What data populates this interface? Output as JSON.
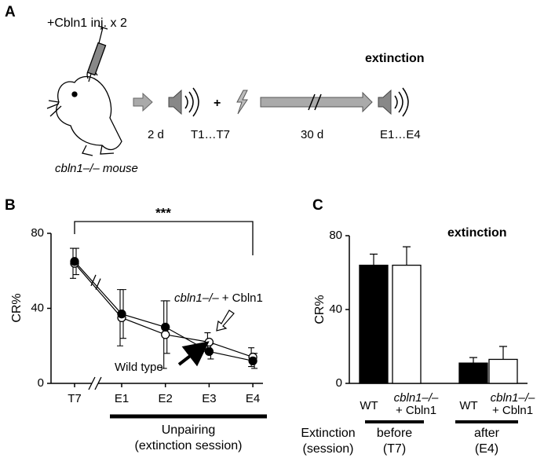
{
  "panel_a": {
    "label": "A",
    "injection": "+Cbln1 inj. x 2",
    "mouse": "cbln1–/– mouse",
    "plus": "+",
    "interval1": "2 d",
    "training": "T1…T7",
    "interval2": "30 d",
    "test": "E1…E4",
    "title": "extinction"
  },
  "chart_data": [
    {
      "panel": "B",
      "type": "line",
      "ylabel": "CR%",
      "ylim": [
        0,
        80
      ],
      "yticks": [
        0,
        40,
        80
      ],
      "significance": "***",
      "categories": [
        "T7",
        "E1",
        "E2",
        "E3",
        "E4"
      ],
      "series": [
        {
          "name": "Wild type",
          "color": "#000000",
          "values": [
            65,
            37,
            30,
            17,
            12
          ],
          "errors": [
            7,
            13,
            14,
            4,
            4
          ]
        },
        {
          "name": "+ Cbln1",
          "name_prefix": "cbln1–/–",
          "color": "#ffffff",
          "values": [
            64,
            35,
            26,
            22,
            14
          ],
          "errors": [
            8,
            15,
            18,
            5,
            5
          ]
        }
      ],
      "xlabel": [
        "Unpairing",
        "(extinction session)"
      ]
    },
    {
      "panel": "C",
      "type": "bar",
      "title": "extinction",
      "ylabel": "CR%",
      "ylim": [
        0,
        80
      ],
      "yticks": [
        0,
        40,
        80
      ],
      "categories": [
        [
          "WT"
        ],
        [
          "cbln1–/–",
          "+ Cbln1"
        ],
        [
          "WT"
        ],
        [
          "cbln1–/–",
          "+ Cbln1"
        ]
      ],
      "colors": [
        "#000000",
        "#ffffff",
        "#000000",
        "#ffffff"
      ],
      "values": [
        64,
        64,
        11,
        13
      ],
      "errors": [
        6,
        10,
        3,
        7
      ],
      "groups": [
        [
          "before",
          "(T7)"
        ],
        [
          "after",
          "(E4)"
        ]
      ],
      "group_label": [
        "Extinction",
        "(session)"
      ]
    }
  ]
}
